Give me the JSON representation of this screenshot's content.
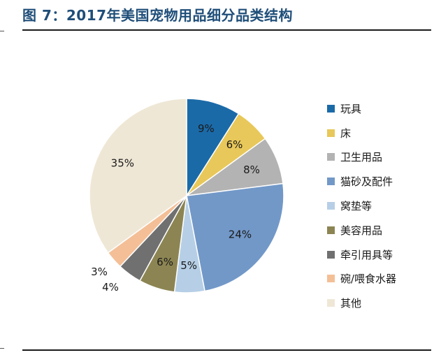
{
  "title": "图 7：2017年美国宠物用品细分品类结构",
  "chart_data": {
    "type": "pie",
    "categories": [
      "玩具",
      "床",
      "卫生用品",
      "猫砂及配件",
      "窝垫等",
      "美容用品",
      "牵引用具等",
      "碗/喂食水器",
      "其他"
    ],
    "values": [
      9,
      6,
      8,
      24,
      5,
      6,
      4,
      3,
      35
    ],
    "labels": [
      "9%",
      "6%",
      "8%",
      "24%",
      "5%",
      "6%",
      "4%",
      "3%",
      "35%"
    ],
    "colors": [
      "#1b6aa8",
      "#e8c85a",
      "#b3b3b3",
      "#7298c8",
      "#b6cfe6",
      "#8c8553",
      "#707070",
      "#f4bf96",
      "#efe7d6"
    ],
    "start_angle_deg": 0,
    "direction": "clockwise",
    "legend_position": "right"
  }
}
